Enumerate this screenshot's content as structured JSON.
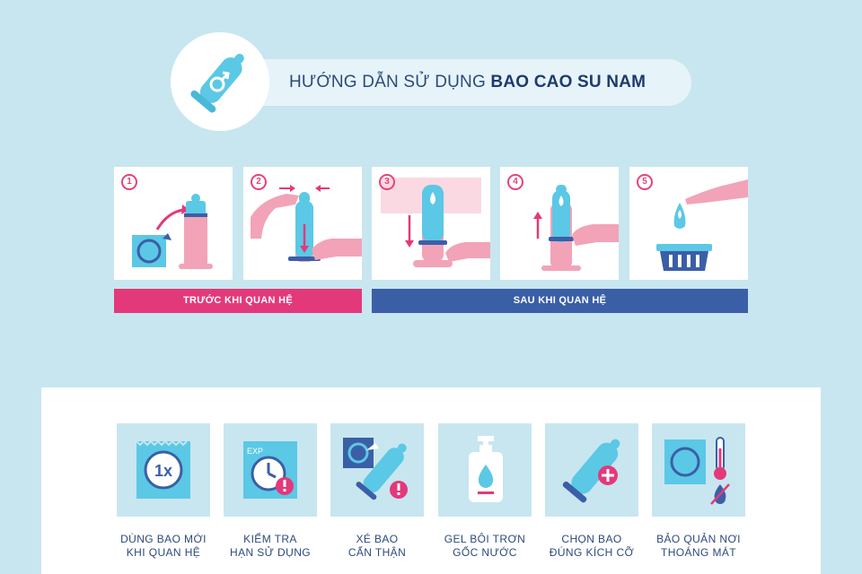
{
  "header": {
    "title_prefix": "HƯỚNG DẪN SỬ DỤNG ",
    "title_bold": "BAO CAO SU NAM",
    "logo_icon": "male-condom-icon"
  },
  "steps": [
    {
      "number": "1",
      "icon": "open-packet-icon"
    },
    {
      "number": "2",
      "icon": "pinch-tip-icon"
    },
    {
      "number": "3",
      "icon": "roll-down-icon"
    },
    {
      "number": "4",
      "icon": "remove-condom-icon"
    },
    {
      "number": "5",
      "icon": "dispose-bin-icon"
    }
  ],
  "phases": {
    "before": "TRƯỚC KHI QUAN HỆ",
    "after": "SAU KHI QUAN HỆ"
  },
  "tips": [
    {
      "line1": "DÙNG BAO MỚI",
      "line2": "KHI QUAN HỆ",
      "icon": "one-time-packet-icon",
      "badge": "1x"
    },
    {
      "line1": "KIỂM TRA",
      "line2": "HẠN SỬ DỤNG",
      "icon": "expiry-clock-icon",
      "badge": "EXP"
    },
    {
      "line1": "XÉ BAO",
      "line2": "CẨN THẬN",
      "icon": "tear-packet-icon"
    },
    {
      "line1": "GEL BÔI TRƠN",
      "line2": "GỐC NƯỚC",
      "icon": "gel-bottle-icon"
    },
    {
      "line1": "CHỌN BAO",
      "line2": "ĐÚNG KÍCH CỠ",
      "icon": "size-condom-icon"
    },
    {
      "line1": "BẢO QUẢN NƠI",
      "line2": "THOÁNG MÁT",
      "icon": "storage-temperature-icon"
    }
  ],
  "colors": {
    "background": "#c8e6f0",
    "pink": "#e3397a",
    "blue": "#3b5fa6",
    "cyan": "#5bc8e6",
    "skin": "#f2a3b8"
  }
}
